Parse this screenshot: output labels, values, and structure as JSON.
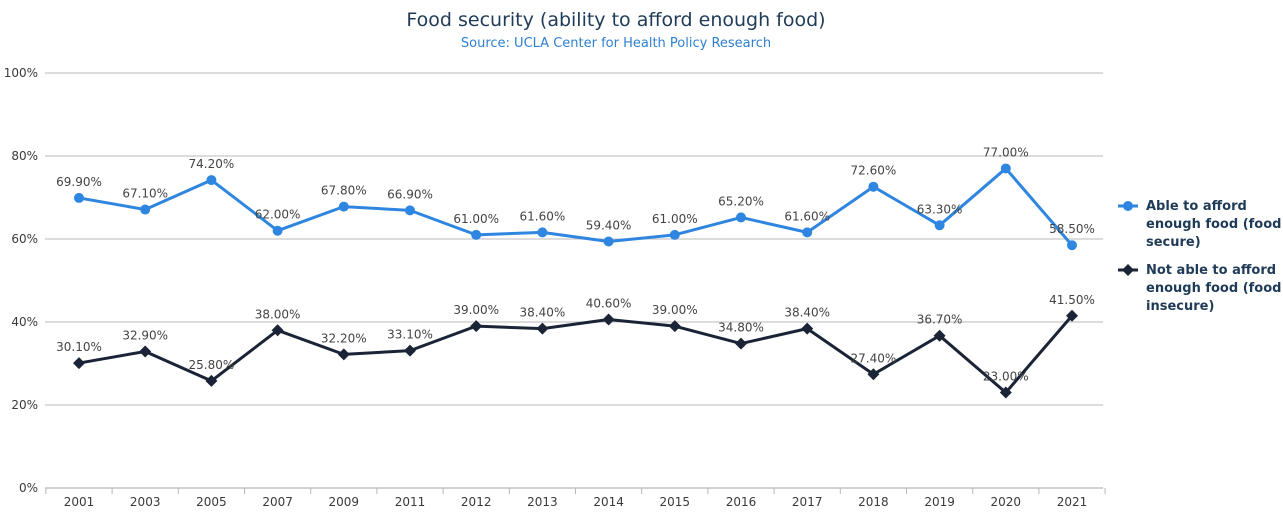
{
  "chart_data": {
    "type": "line",
    "title": "Food security (ability to afford enough food)",
    "subtitle": "Source: UCLA Center for Health Policy Research",
    "xlabel": "",
    "ylabel": "",
    "categories": [
      "2001",
      "2003",
      "2005",
      "2007",
      "2009",
      "2011",
      "2012",
      "2013",
      "2014",
      "2015",
      "2016",
      "2017",
      "2018",
      "2019",
      "2020",
      "2021"
    ],
    "ylim": [
      0,
      100
    ],
    "yticks": [
      0,
      20,
      40,
      60,
      80,
      100
    ],
    "ytick_labels": [
      "0%",
      "20%",
      "40%",
      "60%",
      "80%",
      "100%"
    ],
    "grid": true,
    "legend_position": "right",
    "series": [
      {
        "legend_lines": [
          "Able to afford",
          "enough food (food",
          "secure)"
        ],
        "color": "#2f86e0",
        "marker": "circle",
        "values": [
          69.9,
          67.1,
          74.2,
          62.0,
          67.8,
          66.9,
          61.0,
          61.6,
          59.4,
          61.0,
          65.2,
          61.6,
          72.6,
          63.3,
          77.0,
          58.5
        ],
        "labels": [
          "69.90%",
          "67.10%",
          "74.20%",
          "62.00%",
          "67.80%",
          "66.90%",
          "61.00%",
          "61.60%",
          "59.40%",
          "61.00%",
          "65.20%",
          "61.60%",
          "72.60%",
          "63.30%",
          "77.00%",
          "58.50%"
        ]
      },
      {
        "legend_lines": [
          "Not able to afford",
          "enough food (food",
          "insecure)"
        ],
        "color": "#1b2436",
        "marker": "diamond",
        "values": [
          30.1,
          32.9,
          25.8,
          38.0,
          32.2,
          33.1,
          39.0,
          38.4,
          40.6,
          39.0,
          34.8,
          38.4,
          27.4,
          36.7,
          23.0,
          41.5
        ],
        "labels": [
          "30.10%",
          "32.90%",
          "25.80%",
          "38.00%",
          "32.20%",
          "33.10%",
          "39.00%",
          "38.40%",
          "40.60%",
          "39.00%",
          "34.80%",
          "38.40%",
          "27.40%",
          "36.70%",
          "23.00%",
          "41.50%"
        ]
      }
    ]
  }
}
